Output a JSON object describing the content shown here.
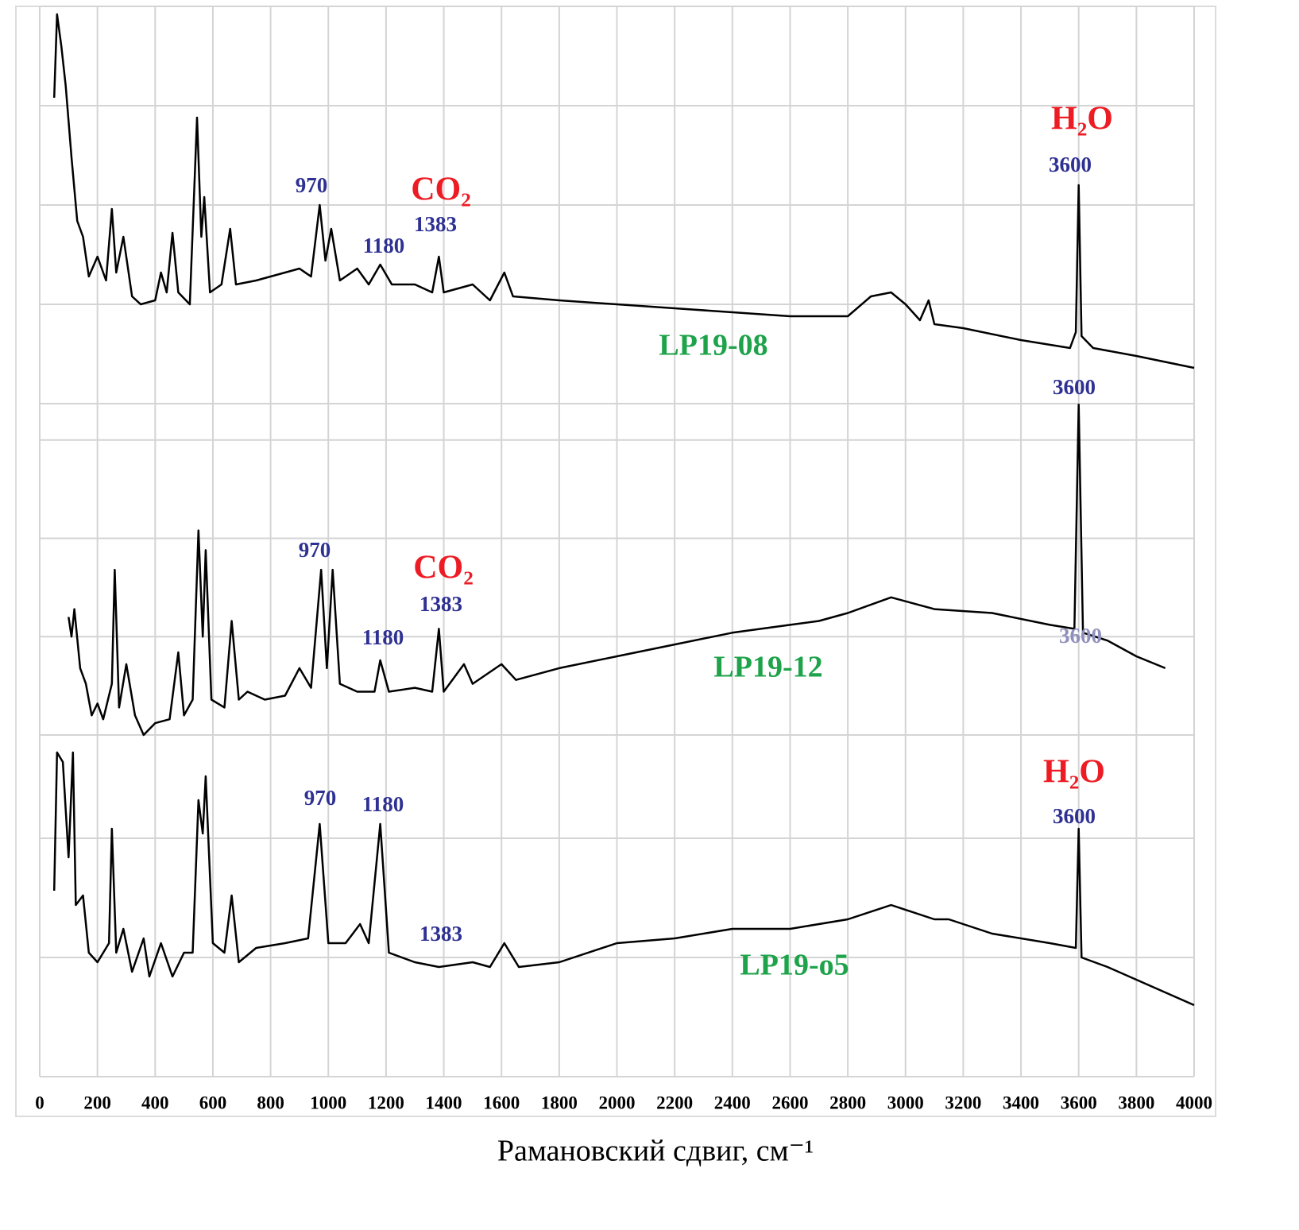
{
  "chart_data": [
    {
      "type": "line",
      "color": "#000000",
      "xlim": [
        0,
        4000
      ],
      "ylim": [
        0,
        100
      ],
      "yticks": [
        0,
        25,
        50,
        75,
        100
      ],
      "grid": true,
      "x": [
        50,
        60,
        75,
        90,
        110,
        130,
        150,
        170,
        200,
        230,
        250,
        265,
        290,
        320,
        350,
        400,
        420,
        440,
        460,
        480,
        520,
        545,
        560,
        570,
        590,
        630,
        660,
        680,
        750,
        850,
        900,
        940,
        970,
        990,
        1010,
        1040,
        1100,
        1140,
        1180,
        1220,
        1300,
        1360,
        1383,
        1400,
        1500,
        1560,
        1610,
        1640,
        1800,
        2000,
        2200,
        2400,
        2600,
        2800,
        2880,
        2950,
        3000,
        3050,
        3080,
        3100,
        3200,
        3400,
        3570,
        3590,
        3600,
        3610,
        3650,
        3800,
        4000
      ],
      "values": [
        77,
        98,
        90,
        80,
        62,
        46,
        42,
        32,
        37,
        31,
        49,
        33,
        42,
        27,
        25,
        26,
        33,
        28,
        43,
        28,
        25,
        72,
        42,
        52,
        28,
        30,
        44,
        30,
        31,
        33,
        34,
        32,
        50,
        36,
        44,
        31,
        34,
        30,
        35,
        30,
        30,
        28,
        37,
        28,
        30,
        26,
        33,
        27,
        26,
        25,
        24,
        23,
        22,
        22,
        27,
        28,
        25,
        21,
        26,
        20,
        19,
        16,
        14,
        18,
        55,
        17,
        14,
        12,
        9
      ],
      "annotations": [
        {
          "text": "970",
          "color": "#2e3192"
        },
        {
          "text": "1180",
          "color": "#2e3192"
        },
        {
          "text": "CO₂",
          "color": "#ed1c24"
        },
        {
          "text": "1383",
          "color": "#2e3192"
        },
        {
          "text": "H₂O",
          "color": "#ed1c24"
        },
        {
          "text": "3600",
          "color": "#2e3192"
        },
        {
          "text": "LP19-08",
          "color": "#1ea34a"
        }
      ]
    },
    {
      "type": "line",
      "color": "#000000",
      "xlim": [
        0,
        4000
      ],
      "ylim": [
        0,
        100
      ],
      "yticks": [
        0,
        25,
        50,
        75
      ],
      "grid": true,
      "x": [
        100,
        110,
        120,
        140,
        160,
        180,
        200,
        220,
        250,
        260,
        275,
        300,
        330,
        360,
        400,
        450,
        480,
        500,
        530,
        550,
        565,
        575,
        595,
        640,
        665,
        690,
        720,
        780,
        850,
        900,
        940,
        975,
        995,
        1015,
        1040,
        1100,
        1160,
        1180,
        1210,
        1300,
        1360,
        1383,
        1400,
        1470,
        1500,
        1600,
        1650,
        1800,
        2000,
        2200,
        2400,
        2600,
        2700,
        2800,
        2950,
        3100,
        3300,
        3500,
        3585,
        3600,
        3615,
        3700,
        3800,
        3900
      ],
      "values": [
        30,
        25,
        32,
        17,
        13,
        5,
        8,
        4,
        13,
        42,
        7,
        18,
        5,
        0,
        3,
        4,
        21,
        5,
        9,
        52,
        25,
        47,
        9,
        7,
        29,
        9,
        11,
        9,
        10,
        17,
        12,
        42,
        17,
        42,
        13,
        11,
        11,
        19,
        11,
        12,
        11,
        27,
        11,
        18,
        13,
        18,
        14,
        17,
        20,
        23,
        26,
        28,
        29,
        31,
        35,
        32,
        31,
        28,
        27,
        84,
        26,
        24,
        20,
        17
      ],
      "annotations": [
        {
          "text": "3600",
          "color": "#2e3192"
        },
        {
          "text": "970",
          "color": "#2e3192"
        },
        {
          "text": "CO₂",
          "color": "#ed1c24"
        },
        {
          "text": "1383",
          "color": "#2e3192"
        },
        {
          "text": "1180",
          "color": "#2e3192"
        },
        {
          "text": "LP19-12",
          "color": "#1ea34a"
        },
        {
          "text": "3600",
          "color": "#8f90bd"
        }
      ]
    },
    {
      "type": "line",
      "color": "#000000",
      "xlim": [
        0,
        4000
      ],
      "ylim": [
        0,
        100
      ],
      "yticks": [
        0,
        25,
        50
      ],
      "grid": true,
      "x": [
        50,
        60,
        80,
        100,
        115,
        125,
        150,
        170,
        200,
        240,
        250,
        265,
        290,
        320,
        360,
        380,
        420,
        460,
        500,
        530,
        550,
        565,
        575,
        600,
        640,
        665,
        690,
        750,
        850,
        930,
        970,
        1000,
        1060,
        1110,
        1140,
        1180,
        1210,
        1300,
        1383,
        1500,
        1560,
        1610,
        1660,
        1800,
        2000,
        2200,
        2400,
        2600,
        2800,
        2950,
        3100,
        3150,
        3300,
        3500,
        3590,
        3600,
        3610,
        3700,
        3850,
        4000
      ],
      "values": [
        39,
        68,
        66,
        46,
        68,
        36,
        38,
        26,
        24,
        28,
        52,
        26,
        31,
        22,
        29,
        21,
        28,
        21,
        26,
        26,
        58,
        51,
        63,
        28,
        26,
        38,
        24,
        27,
        28,
        29,
        53,
        28,
        28,
        32,
        28,
        53,
        26,
        24,
        23,
        24,
        23,
        28,
        23,
        24,
        28,
        29,
        31,
        31,
        33,
        36,
        33,
        33,
        30,
        28,
        27,
        52,
        25,
        23,
        19,
        15
      ],
      "annotations": [
        {
          "text": "H₂O",
          "color": "#ed1c24"
        },
        {
          "text": "3600",
          "color": "#2e3192"
        },
        {
          "text": "970",
          "color": "#2e3192"
        },
        {
          "text": "1180",
          "color": "#2e3192"
        },
        {
          "text": "1383",
          "color": "#2e3192"
        },
        {
          "text": "LP19-o5",
          "color": "#1ea34a"
        }
      ],
      "xticks": [
        0,
        200,
        400,
        600,
        800,
        1000,
        1200,
        1400,
        1600,
        1800,
        2000,
        2200,
        2400,
        2600,
        2800,
        3000,
        3200,
        3400,
        3600,
        3800,
        4000
      ],
      "xlabel": "Рамановский сдвиг, см⁻¹"
    }
  ]
}
